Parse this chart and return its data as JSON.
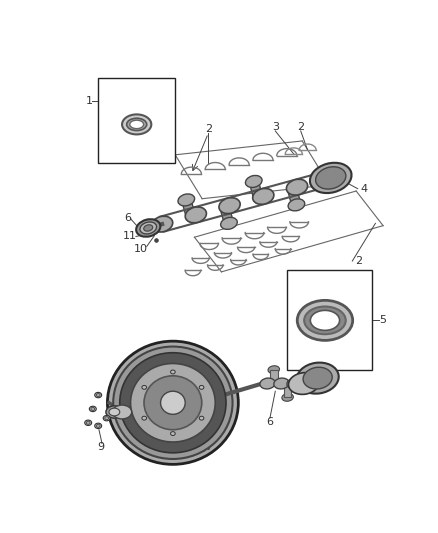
{
  "bg": "#ffffff",
  "fig_w": 4.38,
  "fig_h": 5.33,
  "dpi": 100,
  "lc": "#444444",
  "tc": "#333333",
  "dark": "#222222",
  "mid": "#888888",
  "light": "#cccccc",
  "lighter": "#eeeeee"
}
